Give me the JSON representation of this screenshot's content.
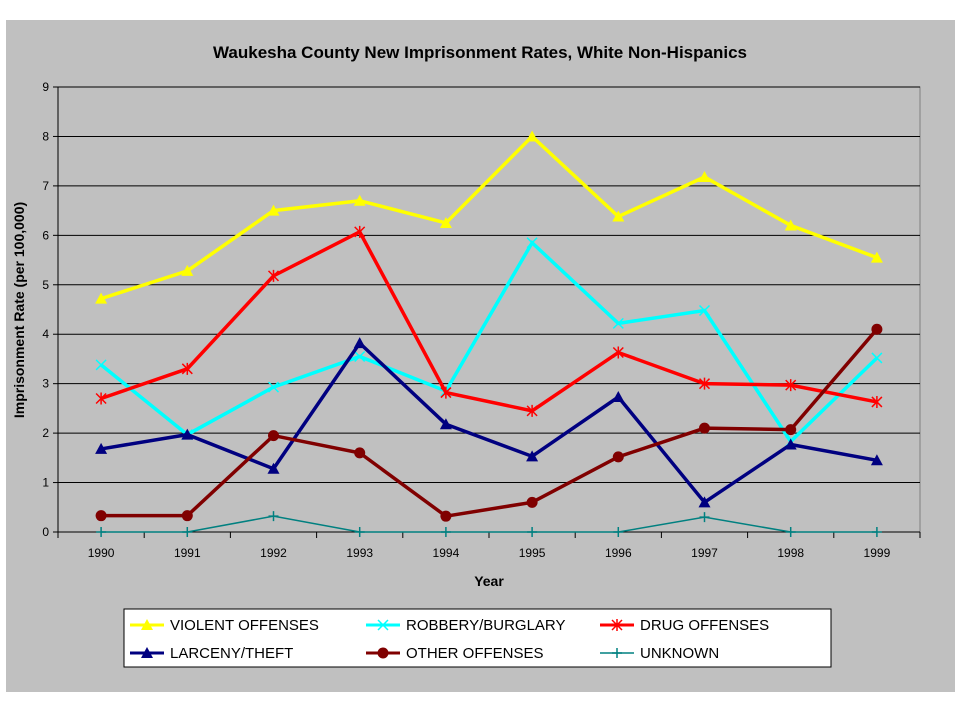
{
  "chart_data": {
    "type": "line",
    "title": "Waukesha County New Imprisonment Rates, White Non-Hispanics",
    "xlabel": "Year",
    "ylabel": "Imprisonment Rate (per 100,000)",
    "x": [
      "1990",
      "1991",
      "1992",
      "1993",
      "1994",
      "1995",
      "1996",
      "1997",
      "1998",
      "1999"
    ],
    "ylim": [
      0,
      9
    ],
    "yticks": [
      "0",
      "1",
      "2",
      "3",
      "4",
      "5",
      "6",
      "7",
      "8",
      "9"
    ],
    "grid": true,
    "legend_position": "bottom",
    "series": [
      {
        "name": "VIOLENT OFFENSES",
        "color": "#ffff00",
        "marker": "triangle",
        "values": [
          4.72,
          5.28,
          6.5,
          6.7,
          6.25,
          8.0,
          6.38,
          7.18,
          6.2,
          5.55
        ]
      },
      {
        "name": "ROBBERY/BURGLARY",
        "color": "#00ffff",
        "marker": "x",
        "values": [
          3.38,
          1.97,
          2.93,
          3.55,
          2.85,
          5.85,
          4.22,
          4.48,
          1.83,
          3.52
        ]
      },
      {
        "name": "DRUG OFFENSES",
        "color": "#ff0000",
        "marker": "star",
        "values": [
          2.7,
          3.3,
          5.18,
          6.07,
          2.82,
          2.45,
          3.63,
          3.0,
          2.97,
          2.63
        ]
      },
      {
        "name": "LARCENY/THEFT",
        "color": "#000080",
        "marker": "triangle",
        "values": [
          1.68,
          1.97,
          1.28,
          3.82,
          2.18,
          1.53,
          2.73,
          0.6,
          1.77,
          1.45
        ]
      },
      {
        "name": "OTHER OFFENSES",
        "color": "#800000",
        "marker": "circle",
        "values": [
          0.33,
          0.33,
          1.95,
          1.6,
          0.32,
          0.6,
          1.52,
          2.1,
          2.07,
          4.1
        ]
      },
      {
        "name": "UNKNOWN",
        "color": "#008080",
        "marker": "plus",
        "values": [
          0,
          0,
          0.32,
          0,
          0,
          0,
          0,
          0.3,
          0,
          0
        ]
      }
    ]
  }
}
